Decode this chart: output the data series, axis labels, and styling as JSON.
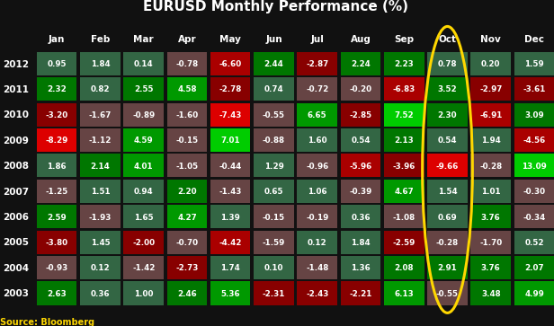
{
  "title": "EURUSD Monthly Performance (%)",
  "source": "Source: Bloomberg",
  "months": [
    "Jan",
    "Feb",
    "Mar",
    "Apr",
    "May",
    "Jun",
    "Jul",
    "Aug",
    "Sep",
    "Oct",
    "Nov",
    "Dec"
  ],
  "years": [
    2012,
    2011,
    2010,
    2009,
    2008,
    2007,
    2006,
    2005,
    2004,
    2003
  ],
  "data": [
    [
      0.95,
      1.84,
      0.14,
      -0.78,
      -6.6,
      2.44,
      -2.87,
      2.24,
      2.23,
      0.78,
      0.2,
      1.59
    ],
    [
      2.32,
      0.82,
      2.55,
      4.58,
      -2.78,
      0.74,
      -0.72,
      -0.2,
      -6.83,
      3.52,
      -2.97,
      -3.61
    ],
    [
      -3.2,
      -1.67,
      -0.89,
      -1.6,
      -7.43,
      -0.55,
      6.65,
      -2.85,
      7.52,
      2.3,
      -6.91,
      3.09
    ],
    [
      -8.29,
      -1.12,
      4.59,
      -0.15,
      7.01,
      -0.88,
      1.6,
      0.54,
      2.13,
      0.54,
      1.94,
      -4.56
    ],
    [
      1.86,
      2.14,
      4.01,
      -1.05,
      -0.44,
      1.29,
      -0.96,
      -5.96,
      -3.96,
      -9.66,
      -0.28,
      13.09
    ],
    [
      -1.25,
      1.51,
      0.94,
      2.2,
      -1.43,
      0.65,
      1.06,
      -0.39,
      4.67,
      1.54,
      1.01,
      -0.3
    ],
    [
      2.59,
      -1.93,
      1.65,
      4.27,
      1.39,
      -0.15,
      -0.19,
      0.36,
      -1.08,
      0.69,
      3.76,
      -0.34
    ],
    [
      -3.8,
      1.45,
      -2.0,
      -0.7,
      -4.42,
      -1.59,
      0.12,
      1.84,
      -2.59,
      -0.28,
      -1.7,
      0.52
    ],
    [
      -0.93,
      0.12,
      -1.42,
      -2.73,
      1.74,
      0.1,
      -1.48,
      1.36,
      2.08,
      2.91,
      3.76,
      2.07
    ],
    [
      2.63,
      0.36,
      1.0,
      2.46,
      5.36,
      -2.31,
      -2.43,
      -2.21,
      6.13,
      -0.55,
      3.48,
      4.99
    ]
  ],
  "highlighted_col": 9,
  "highlight_circle_color": "#FFD700",
  "bg_color": "#111111",
  "title_color": "#ffffff",
  "text_color": "#ffffff",
  "source_color": "#FFD700",
  "colors": {
    "green_strong": "#00aa00",
    "green_medium": "#338833",
    "green_light": "#336633",
    "red_strong": "#cc0000",
    "red_medium": "#993333",
    "red_light": "#884444",
    "bright_green": "#00dd00",
    "bright_red": "#ff2222"
  }
}
